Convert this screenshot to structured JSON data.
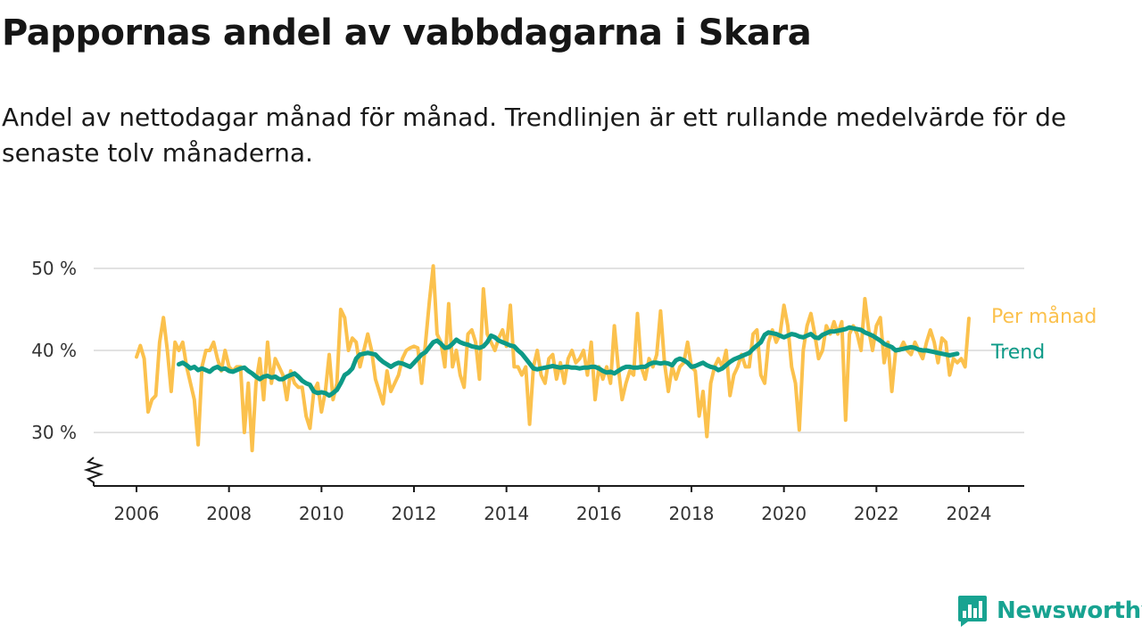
{
  "title": "Pappornas andel av vabbdagarna i Skara",
  "subtitle": "Andel av nettodagar månad för månad. Trendlinjen är ett rullande medelvärde för de senaste tolv månaderna.",
  "brand": {
    "name": "Newsworthy",
    "icon": "newsworthy-logo-icon",
    "color": "#18a391"
  },
  "chart_data": {
    "type": "line",
    "title": "Pappornas andel av vabbdagarna i Skara",
    "subtitle": "Andel av nettodagar månad för månad. Trendlinjen är ett rullande medelvärde för de senaste tolv månaderna.",
    "xlabel": "",
    "ylabel": "",
    "x_ticks": [
      "2006",
      "2008",
      "2010",
      "2012",
      "2014",
      "2016",
      "2018",
      "2020",
      "2022",
      "2024"
    ],
    "y_ticks": [
      "30 %",
      "40 %",
      "50 %"
    ],
    "y_tick_values": [
      30,
      40,
      50
    ],
    "ylim": [
      24,
      51
    ],
    "xlim": [
      "2005-01",
      "2025-01"
    ],
    "y_axis_break": true,
    "grid": true,
    "legend": "inline-right",
    "series": [
      {
        "name": "Per månad",
        "color": "#fbc14d",
        "x_start": "2006-01",
        "frequency": "monthly",
        "values": [
          39.2,
          40.6,
          39.0,
          32.5,
          34.0,
          34.5,
          41.0,
          44.0,
          40.0,
          35.0,
          41.0,
          40.0,
          41.0,
          38.0,
          36.0,
          34.0,
          28.5,
          38.0,
          40.0,
          40.0,
          41.0,
          39.0,
          37.5,
          40.0,
          38.0,
          37.5,
          38.0,
          38.0,
          30.0,
          36.0,
          27.8,
          36.0,
          39.0,
          34.0,
          41.0,
          36.0,
          39.0,
          38.0,
          37.0,
          34.0,
          37.5,
          36.0,
          35.5,
          35.5,
          32.0,
          30.5,
          35.0,
          36.0,
          32.5,
          35.0,
          39.5,
          34.0,
          36.0,
          45.0,
          44.0,
          40.0,
          41.5,
          41.0,
          38.0,
          40.0,
          42.0,
          40.0,
          36.5,
          35.0,
          33.5,
          37.5,
          35.0,
          36.0,
          37.0,
          39.0,
          40.0,
          40.3,
          40.5,
          40.3,
          36.0,
          41.0,
          46.0,
          50.3,
          42.0,
          41.0,
          38.0,
          45.7,
          38.0,
          40.0,
          37.0,
          35.5,
          42.0,
          42.5,
          41.0,
          36.5,
          47.5,
          42.0,
          41.0,
          40.0,
          41.5,
          42.5,
          40.5,
          45.5,
          38.0,
          38.0,
          37.0,
          38.0,
          31.0,
          38.0,
          40.0,
          37.0,
          36.0,
          39.0,
          39.5,
          36.5,
          38.5,
          36.0,
          39.0,
          40.0,
          38.5,
          39.0,
          40.0,
          37.0,
          41.0,
          34.0,
          38.0,
          36.5,
          38.0,
          36.0,
          43.0,
          38.0,
          34.0,
          36.0,
          37.5,
          37.0,
          44.5,
          38.0,
          36.5,
          39.0,
          38.0,
          39.5,
          44.8,
          38.5,
          35.0,
          38.0,
          36.5,
          38.0,
          38.5,
          41.0,
          38.0,
          37.5,
          32.0,
          35.0,
          29.5,
          36.0,
          38.0,
          39.0,
          38.0,
          40.0,
          34.5,
          37.0,
          38.0,
          39.5,
          38.0,
          38.0,
          42.0,
          42.5,
          37.0,
          36.0,
          41.0,
          42.5,
          41.0,
          42.0,
          45.5,
          43.0,
          38.0,
          36.0,
          30.3,
          40.0,
          43.0,
          44.5,
          42.0,
          39.0,
          40.0,
          43.0,
          42.0,
          43.5,
          42.0,
          43.5,
          31.5,
          42.0,
          43.0,
          42.0,
          40.0,
          46.3,
          42.5,
          40.0,
          43.0,
          44.0,
          38.5,
          41.0,
          35.0,
          40.0,
          40.0,
          41.0,
          40.0,
          39.5,
          41.0,
          40.0,
          39.0,
          41.0,
          42.5,
          41.0,
          38.5,
          41.5,
          41.0,
          37.0,
          39.0,
          38.5,
          39.0,
          38.0,
          43.9
        ],
        "label": "Per månad"
      },
      {
        "name": "Trend",
        "color": "#0d9a87",
        "x_start": "2006-12",
        "frequency": "monthly",
        "values": [
          38.3,
          38.5,
          38.2,
          37.8,
          38.0,
          37.6,
          37.8,
          37.6,
          37.4,
          37.8,
          38.0,
          37.7,
          37.8,
          37.5,
          37.4,
          37.6,
          37.8,
          37.9,
          37.5,
          37.2,
          36.8,
          36.5,
          36.8,
          36.9,
          36.7,
          36.8,
          36.5,
          36.5,
          36.8,
          37.0,
          37.2,
          36.8,
          36.3,
          36.0,
          35.8,
          35.0,
          34.8,
          34.9,
          34.8,
          34.5,
          34.8,
          35.2,
          36.0,
          37.0,
          37.3,
          37.8,
          39.0,
          39.5,
          39.6,
          39.7,
          39.6,
          39.5,
          39.0,
          38.6,
          38.3,
          38.0,
          38.3,
          38.5,
          38.4,
          38.2,
          38.0,
          38.5,
          39.0,
          39.5,
          39.8,
          40.4,
          41.0,
          41.2,
          40.8,
          40.3,
          40.4,
          40.8,
          41.3,
          41.0,
          40.8,
          40.7,
          40.5,
          40.4,
          40.3,
          40.5,
          41.0,
          41.8,
          41.6,
          41.2,
          41.0,
          40.8,
          40.6,
          40.5,
          40.0,
          39.6,
          39.0,
          38.4,
          37.8,
          37.7,
          37.8,
          37.9,
          38.0,
          38.1,
          38.0,
          37.9,
          38.0,
          38.0,
          37.9,
          37.9,
          37.8,
          37.9,
          37.9,
          38.0,
          38.0,
          37.8,
          37.5,
          37.3,
          37.4,
          37.2,
          37.5,
          37.8,
          38.0,
          38.0,
          37.9,
          37.9,
          38.0,
          38.0,
          38.3,
          38.5,
          38.5,
          38.4,
          38.5,
          38.4,
          38.2,
          38.8,
          39.0,
          38.8,
          38.5,
          38.0,
          38.1,
          38.3,
          38.5,
          38.2,
          38.0,
          37.9,
          37.6,
          37.8,
          38.2,
          38.6,
          38.9,
          39.1,
          39.3,
          39.5,
          39.7,
          40.2,
          40.6,
          41.0,
          41.9,
          42.2,
          42.1,
          42.0,
          41.8,
          41.6,
          41.8,
          42.0,
          41.9,
          41.7,
          41.6,
          41.8,
          42.0,
          41.6,
          41.5,
          41.9,
          42.1,
          42.3,
          42.3,
          42.4,
          42.5,
          42.6,
          42.8,
          42.7,
          42.6,
          42.5,
          42.2,
          42.0,
          41.8,
          41.5,
          41.2,
          40.8,
          40.6,
          40.4,
          40.0,
          40.1,
          40.2,
          40.3,
          40.4,
          40.3,
          40.1,
          40.0,
          40.0,
          39.9,
          39.8,
          39.7,
          39.6,
          39.5,
          39.4,
          39.5,
          39.6
        ],
        "label": "Trend"
      }
    ]
  }
}
